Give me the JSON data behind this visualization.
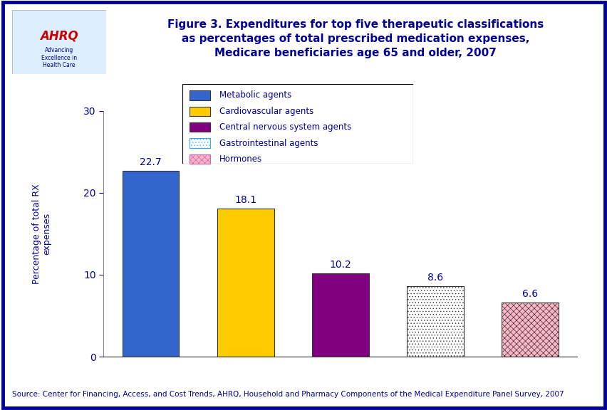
{
  "categories": [
    "Metabolic agents",
    "Cardiovascular agents",
    "Central nervous system agents",
    "Gastrointestinal agents",
    "Hormones"
  ],
  "values": [
    22.7,
    18.1,
    10.2,
    8.6,
    6.6
  ],
  "solid_colors": [
    "#3366CC",
    "#FFCC00",
    "#800080"
  ],
  "title_line1": "Figure 3. Expenditures for top five therapeutic classifications",
  "title_line2": "as percentages of total prescribed medication expenses,",
  "title_line3": "Medicare beneficiaries age 65 and older, 2007",
  "ylabel_line1": "Percentage of total RX",
  "ylabel_line2": "expenses",
  "ylim": [
    0,
    30
  ],
  "yticks": [
    0,
    10,
    20,
    30
  ],
  "value_labels": [
    "22.7",
    "18.1",
    "10.2",
    "8.6",
    "6.6"
  ],
  "title_color": "#000099",
  "axis_color": "#000099",
  "label_color": "#000099",
  "tick_label_color": "#000099",
  "source_text": "Source: Center for Financing, Access, and Cost Trends, AHRQ, Household and Pharmacy Components of the Medical Expenditure Panel Survey, 2007",
  "border_color": "#000099",
  "background_color": "#FFFFFF",
  "legend_labels": [
    "Metabolic agents",
    "Cardiovascular agents",
    "Central nervous system agents",
    "Gastrointestinal agents",
    "Hormones"
  ],
  "separator_color": "#003399",
  "gastrointestinal_face": "#FFFFFF",
  "gastrointestinal_hatch_color": "#33AAFF",
  "hormones_face": "#FFB6C8",
  "hormones_hatch_color": "#CC66AA"
}
